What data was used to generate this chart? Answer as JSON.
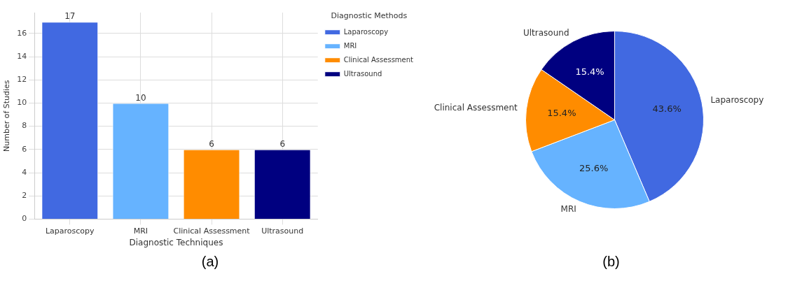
{
  "chart_data": [
    {
      "type": "bar",
      "xlabel": "Diagnostic Techniques",
      "ylabel": "Number of Studies",
      "legend_title": "Diagnostic Methods",
      "categories": [
        "Laparoscopy",
        "MRI",
        "Clinical Assessment",
        "Ultrasound"
      ],
      "series": [
        {
          "name": "Laparoscopy",
          "color": "#4169e1",
          "values": [
            17,
            null,
            null,
            null
          ]
        },
        {
          "name": "MRI",
          "color": "#66b3ff",
          "values": [
            null,
            10,
            null,
            null
          ]
        },
        {
          "name": "Clinical Assessment",
          "color": "#ff8c00",
          "values": [
            null,
            null,
            6,
            null
          ]
        },
        {
          "name": "Ultrasound",
          "color": "#000080",
          "values": [
            null,
            null,
            null,
            6
          ]
        }
      ],
      "ylim": [
        0,
        17.8
      ],
      "yticks": [
        0,
        2,
        4,
        6,
        8,
        10,
        12,
        14,
        16
      ],
      "grid": true,
      "legend": "top right",
      "data_labels": true,
      "annotations": [
        "(a)"
      ]
    },
    {
      "type": "pie",
      "categories": [
        "Laparoscopy",
        "MRI",
        "Clinical Assessment",
        "Ultrasound"
      ],
      "values": [
        43.6,
        25.6,
        15.4,
        15.4
      ],
      "value_labels": [
        "43.6%",
        "25.6%",
        "15.4%",
        "15.4%"
      ],
      "colors": [
        "#4169e1",
        "#66b3ff",
        "#ff8c00",
        "#000080"
      ],
      "annotations": [
        "(b)"
      ]
    }
  ]
}
